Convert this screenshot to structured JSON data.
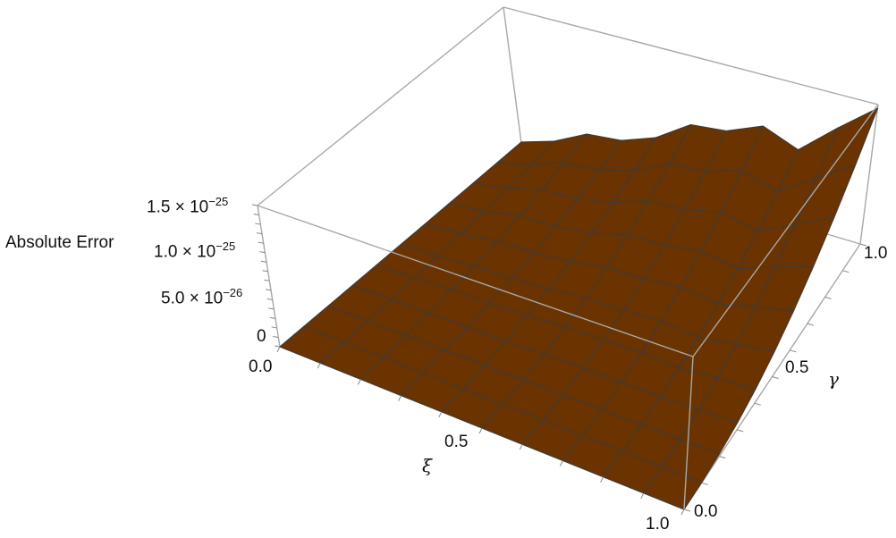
{
  "chart_data": {
    "type": "surface3d",
    "zlabel": "Absolute Error",
    "xlabel": "ξ",
    "ylabel": "γ",
    "xlim": [
      0,
      1
    ],
    "ylim": [
      0,
      1
    ],
    "zlim": [
      0,
      1.5e-25
    ],
    "x_ticks": [
      "0.0",
      "0.5",
      "1.0"
    ],
    "y_ticks": [
      "0.0",
      "0.5",
      "1.0"
    ],
    "z_ticks": [
      {
        "value": 0,
        "mantissa": "0",
        "exponent": ""
      },
      {
        "value": 5e-26,
        "mantissa": "5.0 × 10",
        "exponent": "−26"
      },
      {
        "value": 1e-25,
        "mantissa": "1.0 × 10",
        "exponent": "−25"
      },
      {
        "value": 1.5e-25,
        "mantissa": "1.5 × 10",
        "exponent": "−25"
      }
    ],
    "surface_color": "#6a3300",
    "mesh_color": "#3f3b39",
    "box_color": "#a8a8a8",
    "x": [
      0,
      0.1,
      0.2,
      0.3,
      0.4,
      0.5,
      0.6,
      0.7,
      0.8,
      0.9,
      1.0
    ],
    "y": [
      0,
      0.1,
      0.2,
      0.3,
      0.4,
      0.5,
      0.6,
      0.7,
      0.8,
      0.9,
      1.0
    ],
    "z_rows_by_y": [
      [
        0,
        0,
        0,
        0,
        0,
        0,
        0,
        0,
        0,
        0,
        0
      ],
      [
        0,
        4e-29,
        1e-28,
        1.1e-28,
        1.5e-28,
        2.3e-28,
        2.4e-28,
        2.9e-28,
        2.4e-28,
        3.4e-28,
        4.4e-28
      ],
      [
        2e-29,
        2.3e-28,
        5.8e-28,
        6.5e-28,
        9e-28,
        1.35e-27,
        1.42e-27,
        1.71e-27,
        1.44e-27,
        2.05e-27,
        2.63e-27
      ],
      [
        5e-29,
        6.4e-28,
        1.57e-27,
        1.76e-27,
        2.45e-27,
        3.68e-27,
        3.87e-27,
        4.66e-27,
        3.92e-27,
        5.59e-27,
        7.15e-27
      ],
      [
        1e-28,
        1.31e-27,
        3.23e-27,
        3.64e-27,
        5.05e-27,
        7.58e-27,
        7.98e-27,
        9.6e-27,
        8.08e-27,
        1.15e-26,
        1.47e-26
      ],
      [
        1.8e-28,
        2.3e-27,
        5.66e-27,
        6.37e-27,
        8.85e-27,
        1.33e-26,
        1.4e-26,
        1.68e-26,
        1.42e-26,
        2.02e-26,
        2.58e-26
      ],
      [
        2.8e-28,
        3.63e-27,
        8.93e-27,
        1e-26,
        1.4e-26,
        2.09e-26,
        2.2e-26,
        2.65e-26,
        2.23e-26,
        3.18e-26,
        4.07e-26
      ],
      [
        4.1e-28,
        5.33e-27,
        1.31e-26,
        1.48e-26,
        2.05e-26,
        3.08e-26,
        3.24e-26,
        3.9e-26,
        3.28e-26,
        4.67e-26,
        5.99e-26
      ],
      [
        5.7e-28,
        7.44e-27,
        1.83e-26,
        2.06e-26,
        2.86e-26,
        4.29e-26,
        4.52e-26,
        5.43e-26,
        4.58e-26,
        6.52e-26,
        8.35e-26
      ],
      [
        7.7e-28,
        1e-26,
        2.46e-26,
        2.76e-26,
        3.84e-26,
        5.76e-26,
        6.07e-26,
        7.3e-26,
        6.14e-26,
        8.76e-26,
        1.12e-25
      ],
      [
        1e-27,
        1.3e-26,
        3.2e-26,
        3.6e-26,
        5e-26,
        7.5e-26,
        7.9e-26,
        9.5e-26,
        8e-26,
        1.14e-25,
        1.46e-25
      ]
    ]
  }
}
